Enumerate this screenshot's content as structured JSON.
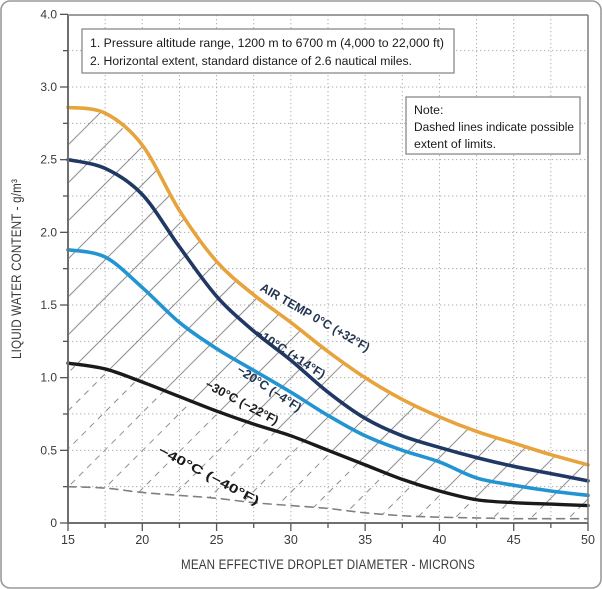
{
  "chart_data": {
    "type": "line",
    "title": "",
    "xlabel": "MEAN EFFECTIVE DROPLET DIAMETER - MICRONS",
    "ylabel": "LIQUID WATER CONTENT - g/m³",
    "x_range": [
      15,
      50
    ],
    "x_ticks": [
      "15",
      "20",
      "25",
      "30",
      "35",
      "40",
      "45",
      "50"
    ],
    "y_tick_labels": [
      "0",
      "0.5",
      "1.0",
      "1.5",
      "2.0",
      "2.5",
      "3.0",
      "4.0"
    ],
    "grid": "fine dotted grid, vertical every 2.5 microns, horizontal every 0.25 g/m3",
    "legend_position": "labels along curves",
    "x": [
      15,
      17.5,
      20,
      22.5,
      25,
      27.5,
      30,
      32.5,
      35,
      37.5,
      40,
      42.5,
      45,
      47.5,
      50
    ],
    "series": [
      {
        "name": "AIR TEMP 0°C (+32°F)",
        "color": "#E7A33C",
        "style": "solid",
        "values": [
          2.86,
          2.82,
          2.6,
          2.15,
          1.8,
          1.57,
          1.38,
          1.18,
          1.0,
          0.85,
          0.73,
          0.63,
          0.55,
          0.47,
          0.4
        ]
      },
      {
        "name": "−10°C (+14°F)",
        "color": "#1F3864",
        "style": "solid",
        "values": [
          2.5,
          2.44,
          2.26,
          1.9,
          1.56,
          1.32,
          1.12,
          0.9,
          0.72,
          0.6,
          0.52,
          0.45,
          0.39,
          0.34,
          0.29
        ]
      },
      {
        "name": "−20°C (−4°F)",
        "color": "#2394D2",
        "style": "solid",
        "values": [
          1.88,
          1.83,
          1.62,
          1.38,
          1.2,
          1.05,
          0.9,
          0.74,
          0.6,
          0.5,
          0.42,
          0.31,
          0.26,
          0.22,
          0.19
        ]
      },
      {
        "name": "−30°C (−22°F)",
        "color": "#1A1A1A",
        "style": "solid",
        "values": [
          1.1,
          1.06,
          0.97,
          0.87,
          0.77,
          0.68,
          0.6,
          0.5,
          0.4,
          0.3,
          0.22,
          0.16,
          0.14,
          0.13,
          0.12
        ]
      },
      {
        "name": "−40°C (−40°F)",
        "color": "#808080",
        "style": "dashed",
        "values": [
          0.25,
          0.24,
          0.21,
          0.19,
          0.17,
          0.14,
          0.12,
          0.1,
          0.07,
          0.05,
          0.04,
          0.035,
          0.03,
          0.03,
          0.03
        ]
      }
    ],
    "annotations": {
      "conditions_box": {
        "line1": "1. Pressure altitude range, 1200 m to 6700 m (4,000 to 22,000 ft)",
        "line2": "2. Horizontal extent, standard distance of 2.6 nautical miles."
      },
      "note_box": {
        "line1": "Note:",
        "line2": "Dashed lines indicate possible",
        "line3": "extent of limits."
      },
      "hatching": "diagonal hatch between 0°C curve and −40°C curve; hatch lines dashed below −30°C curve"
    },
    "colors": {
      "grid": "#ABABAB",
      "frame": "#7F7F7F",
      "hatch": "#8F8F8F",
      "tick_text": "#3A3A3A",
      "label_dark_navy": "#22354F",
      "label_black": "#1A1A1A",
      "border": "#9A9A9A"
    }
  }
}
